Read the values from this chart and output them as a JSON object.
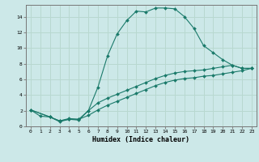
{
  "xlabel": "Humidex (Indice chaleur)",
  "bg_color": "#cce8e8",
  "grid_color": "#b8d8d0",
  "line_color": "#1a7a6a",
  "xlim": [
    -0.5,
    23.5
  ],
  "ylim": [
    0,
    15.5
  ],
  "xticks": [
    0,
    1,
    2,
    3,
    4,
    5,
    6,
    7,
    8,
    9,
    10,
    11,
    12,
    13,
    14,
    15,
    16,
    17,
    18,
    19,
    20,
    21,
    22,
    23
  ],
  "yticks": [
    0,
    2,
    4,
    6,
    8,
    10,
    12,
    14
  ],
  "series1_x": [
    0,
    1,
    2,
    3,
    4,
    5,
    6,
    7,
    8,
    9,
    10,
    11,
    12,
    13,
    14,
    15,
    16,
    17,
    18,
    19,
    20,
    21,
    22,
    23
  ],
  "series1_y": [
    2.1,
    1.3,
    1.2,
    0.6,
    0.9,
    0.8,
    2.0,
    5.0,
    9.0,
    11.8,
    13.5,
    14.7,
    14.6,
    15.1,
    15.1,
    15.0,
    14.0,
    12.5,
    10.3,
    9.4,
    8.5,
    7.8,
    7.4,
    7.4
  ],
  "series2_x": [
    0,
    2,
    3,
    4,
    5,
    6,
    7,
    8,
    9,
    10,
    11,
    12,
    13,
    14,
    15,
    16,
    17,
    18,
    19,
    20,
    21,
    22,
    23
  ],
  "series2_y": [
    2.1,
    1.2,
    0.7,
    1.0,
    0.9,
    2.0,
    3.0,
    3.6,
    4.1,
    4.6,
    5.1,
    5.6,
    6.1,
    6.5,
    6.8,
    7.0,
    7.1,
    7.2,
    7.4,
    7.6,
    7.8,
    7.4,
    7.4
  ],
  "series3_x": [
    0,
    2,
    3,
    4,
    5,
    6,
    7,
    8,
    9,
    10,
    11,
    12,
    13,
    14,
    15,
    16,
    17,
    18,
    19,
    20,
    21,
    22,
    23
  ],
  "series3_y": [
    2.1,
    1.2,
    0.7,
    0.9,
    0.9,
    1.4,
    2.1,
    2.7,
    3.2,
    3.7,
    4.2,
    4.7,
    5.2,
    5.6,
    5.9,
    6.1,
    6.2,
    6.4,
    6.5,
    6.7,
    6.9,
    7.1,
    7.4
  ]
}
